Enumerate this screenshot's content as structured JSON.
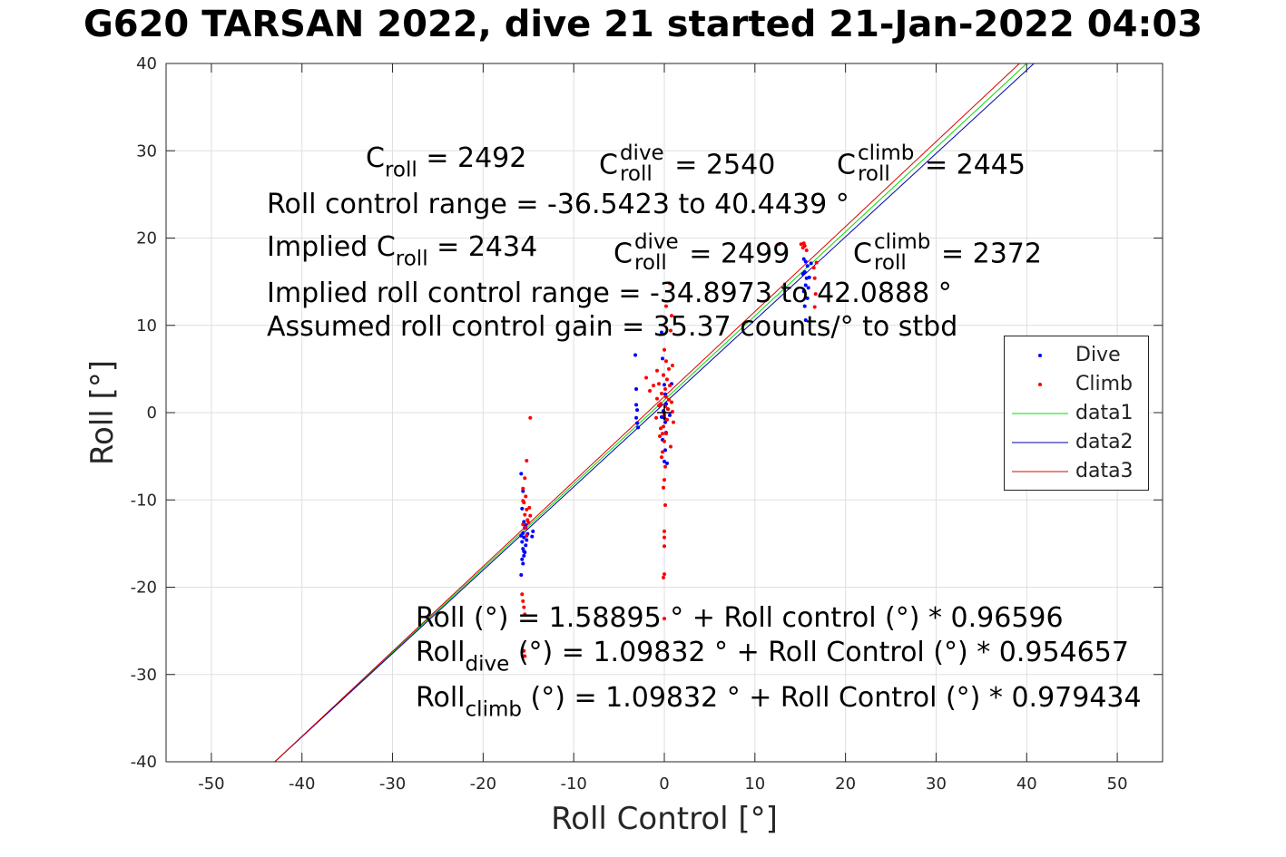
{
  "title": "G620 TARSAN 2022, dive 21 started 21-Jan-2022 04:03",
  "annotations": {
    "c_roll_label": "C",
    "roll_sub": "roll",
    "dive_sup": "dive",
    "climb_sup": "climb",
    "c_roll_value": "= 2492",
    "c_roll_dive_value": "= 2540",
    "c_roll_climb_value": "= 2445",
    "range_line": "Roll control range = -36.5423 to 40.4439 °",
    "implied_prefix": "Implied C",
    "implied_value": "= 2434",
    "implied_dive_value": "= 2499",
    "implied_climb_value": "= 2372",
    "implied_range_line": "Implied roll control range = -34.8973 to 42.0888 °",
    "gain_line": "Assumed roll control gain = 35.37 counts/° to stbd",
    "fit_all": "Roll (°) = 1.58895 ° + Roll control (°) * 0.96596",
    "fit_dive_prefix": "Roll",
    "fit_dive_sub": "dive",
    "fit_dive_rest": " (°) = 1.09832 ° + Roll Control (°) * 0.954657",
    "fit_climb_prefix": "Roll",
    "fit_climb_sub": "climb",
    "fit_climb_rest": " (°) = 1.09832 ° + Roll Control (°) * 0.979434"
  },
  "chart_data": {
    "type": "scatter",
    "title": "G620 TARSAN 2022, dive 21 started 21-Jan-2022 04:03",
    "xlabel": "Roll Control [°]",
    "ylabel": "Roll [°]",
    "xlim": [
      -55,
      55
    ],
    "ylim": [
      -40,
      40
    ],
    "xticks": [
      -50,
      -40,
      -30,
      -20,
      -10,
      0,
      10,
      20,
      30,
      40,
      50
    ],
    "yticks": [
      -40,
      -30,
      -20,
      -10,
      0,
      10,
      20,
      30,
      40
    ],
    "grid": true,
    "legend_position": "right",
    "series": [
      {
        "name": "Dive",
        "type": "scatter",
        "color": "#0000ff",
        "points": [
          [
            -15.8,
            -7
          ],
          [
            -15.6,
            -9
          ],
          [
            -15.7,
            -11
          ],
          [
            -15.5,
            -12.5
          ],
          [
            -15.4,
            -13.2
          ],
          [
            -15.6,
            -13.8
          ],
          [
            -15.5,
            -14.3
          ],
          [
            -15.7,
            -14.8
          ],
          [
            -15.3,
            -15.2
          ],
          [
            -15.6,
            -15.6
          ],
          [
            -15.4,
            -16
          ],
          [
            -15.5,
            -16.4
          ],
          [
            -15.7,
            -16.8
          ],
          [
            -15.6,
            -17.3
          ],
          [
            -15.8,
            -18.6
          ],
          [
            -15.2,
            -14.6
          ],
          [
            -15.1,
            -13.9
          ],
          [
            -15.3,
            -12.9
          ],
          [
            -14.6,
            -14.2
          ],
          [
            -14.5,
            -13.6
          ],
          [
            -15.5,
            -15.9
          ],
          [
            -15.8,
            -14.1
          ],
          [
            -3.2,
            6.6
          ],
          [
            -3.1,
            2.7
          ],
          [
            -3.0,
            0.3
          ],
          [
            -3.1,
            -0.6
          ],
          [
            -3.0,
            -1.2
          ],
          [
            -2.9,
            -1.7
          ],
          [
            -3.1,
            0.9
          ],
          [
            -0.3,
            9.2
          ],
          [
            -0.2,
            6.2
          ],
          [
            -0.1,
            4.3
          ],
          [
            0.0,
            3.2
          ],
          [
            0.1,
            2.1
          ],
          [
            0.2,
            1.0
          ],
          [
            -0.1,
            0.2
          ],
          [
            0.0,
            -0.6
          ],
          [
            0.1,
            -1.1
          ],
          [
            0.2,
            -2.3
          ],
          [
            -0.2,
            -3.1
          ],
          [
            0.1,
            -4.3
          ],
          [
            0.0,
            -5.6
          ],
          [
            0.3,
            -5.8
          ],
          [
            -0.3,
            -0.5
          ],
          [
            0.0,
            0.0
          ],
          [
            0.4,
            0.4
          ],
          [
            0.8,
            3.3
          ],
          [
            0.6,
            -0.3
          ],
          [
            15.6,
            17.3
          ],
          [
            15.8,
            16.8
          ],
          [
            15.5,
            16.1
          ],
          [
            15.7,
            15.4
          ],
          [
            15.6,
            14.6
          ],
          [
            15.4,
            13.9
          ],
          [
            15.8,
            13.1
          ],
          [
            15.5,
            12.2
          ],
          [
            15.3,
            15.9
          ],
          [
            16.0,
            15.5
          ],
          [
            15.9,
            14.3
          ],
          [
            15.6,
            10.6
          ],
          [
            16.2,
            17.1
          ],
          [
            15.4,
            17.6
          ]
        ]
      },
      {
        "name": "Climb",
        "type": "scatter",
        "color": "#ff0000",
        "points": [
          [
            -14.8,
            -0.6
          ],
          [
            -15.2,
            -5.5
          ],
          [
            -15.4,
            -7.5
          ],
          [
            -15.6,
            -8.7
          ],
          [
            -15.3,
            -9.6
          ],
          [
            -15.5,
            -10.3
          ],
          [
            -15.2,
            -11.1
          ],
          [
            -15.4,
            -11.7
          ],
          [
            -15.1,
            -12.3
          ],
          [
            -15.6,
            -12.8
          ],
          [
            -15.3,
            -13.2
          ],
          [
            -14.9,
            -10.9
          ],
          [
            -14.8,
            -11.8
          ],
          [
            -15.0,
            -12.6
          ],
          [
            -15.7,
            -20.8
          ],
          [
            -15.6,
            -21.6
          ],
          [
            -15.5,
            -22.3
          ],
          [
            -15.4,
            -23.1
          ],
          [
            -15.5,
            -27.3
          ],
          [
            -15.4,
            -27.9
          ],
          [
            -15.6,
            -10.1
          ],
          [
            -15.2,
            -14.1
          ],
          [
            -2.0,
            4.0
          ],
          [
            -1.6,
            2.5
          ],
          [
            -1.2,
            3.1
          ],
          [
            -0.8,
            1.6
          ],
          [
            -0.6,
            0.8
          ],
          [
            -0.9,
            -0.6
          ],
          [
            -0.4,
            -1.8
          ],
          [
            -0.2,
            -2.4
          ],
          [
            -0.6,
            3.3
          ],
          [
            0.0,
            7.2
          ],
          [
            0.2,
            5.9
          ],
          [
            0.5,
            5.0
          ],
          [
            -0.1,
            4.3
          ],
          [
            0.3,
            3.8
          ],
          [
            0.6,
            3.1
          ],
          [
            0.1,
            2.7
          ],
          [
            -0.3,
            2.2
          ],
          [
            0.2,
            1.8
          ],
          [
            0.5,
            1.5
          ],
          [
            0.8,
            1.2
          ],
          [
            -0.4,
            1.0
          ],
          [
            0.1,
            0.7
          ],
          [
            0.4,
            0.4
          ],
          [
            0.0,
            -0.3
          ],
          [
            0.3,
            -0.8
          ],
          [
            -0.1,
            -1.6
          ],
          [
            0.2,
            -2.4
          ],
          [
            0.0,
            -3.3
          ],
          [
            -0.2,
            -4.5
          ],
          [
            0.1,
            -6.2
          ],
          [
            0.0,
            -7.7
          ],
          [
            -0.1,
            -8.6
          ],
          [
            0.1,
            -10.6
          ],
          [
            0.0,
            -13.6
          ],
          [
            0.0,
            -14.3
          ],
          [
            0.0,
            -15.3
          ],
          [
            0.0,
            -18.5
          ],
          [
            -0.1,
            -18.9
          ],
          [
            0.0,
            -23.6
          ],
          [
            0.2,
            12.2
          ],
          [
            0.6,
            14.8
          ],
          [
            0.7,
            9.4
          ],
          [
            0.8,
            11.1
          ],
          [
            -0.3,
            -5.1
          ],
          [
            -0.5,
            -2.7
          ],
          [
            0.9,
            0.1
          ],
          [
            1.0,
            -1.1
          ],
          [
            0.7,
            -3.9
          ],
          [
            -0.8,
            4.8
          ],
          [
            0.9,
            5.4
          ],
          [
            15.1,
            19.3
          ],
          [
            15.3,
            18.9
          ],
          [
            15.5,
            19.1
          ],
          [
            15.7,
            18.6
          ],
          [
            15.4,
            19.4
          ],
          [
            12.7,
            19.3
          ],
          [
            16.5,
            16.6
          ],
          [
            16.6,
            15.4
          ],
          [
            16.7,
            13.6
          ],
          [
            16.6,
            12.1
          ],
          [
            16.8,
            17.2
          ]
        ]
      },
      {
        "name": "data1",
        "type": "line",
        "color": "#00dd00",
        "x": [
          -43,
          41
        ],
        "y": [
          -40,
          40
        ]
      },
      {
        "name": "data2",
        "type": "line",
        "color": "#0000aa",
        "x": [
          -43,
          41
        ],
        "y": [
          -40,
          40
        ]
      },
      {
        "name": "data3",
        "type": "line",
        "color": "#dd0000",
        "x": [
          -43,
          41
        ],
        "y": [
          -40,
          40
        ]
      }
    ]
  }
}
